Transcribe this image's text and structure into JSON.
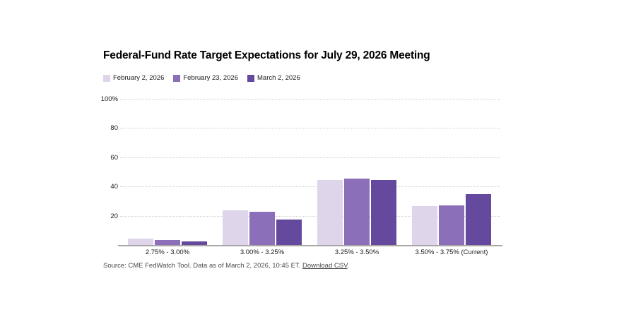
{
  "chart": {
    "title": "Federal-Fund Rate Target Expectations for July 29, 2026 Meeting"
  },
  "chart_data": {
    "type": "bar",
    "title": "Federal-Fund Rate Target Expectations for July 29, 2026 Meeting",
    "categories": [
      "2.75% - 3.00%",
      "3.00% - 3.25%",
      "3.25% - 3.50%",
      "3.50% - 3.75% (Current)"
    ],
    "series": [
      {
        "name": "February 2, 2026",
        "color": "#ded5ea",
        "values": [
          4.4,
          23.5,
          44.5,
          26.4
        ]
      },
      {
        "name": "February 23, 2026",
        "color": "#8c6fb9",
        "values": [
          3.4,
          22.8,
          45.5,
          27.2
        ]
      },
      {
        "name": "March 2, 2026",
        "color": "#64499e",
        "values": [
          2.5,
          17.3,
          44.5,
          35.0
        ]
      }
    ],
    "xlabel": "",
    "ylabel": "",
    "ylim": [
      0,
      100
    ],
    "yticks": [
      {
        "value": 100,
        "label": "100%"
      },
      {
        "value": 80,
        "label": "80"
      },
      {
        "value": 60,
        "label": "60"
      },
      {
        "value": 40,
        "label": "40"
      },
      {
        "value": 20,
        "label": "20"
      }
    ],
    "grid": "horizontal-dotted",
    "legend_position": "top-left",
    "unit": "%"
  },
  "source": {
    "prefix": "Source: CME FedWatch Tool. Data as of March 2, 2026, 10:45 ET. ",
    "link_label": "Download CSV",
    "suffix": "."
  },
  "colors": {
    "axis_line": "#a9a6a7",
    "gridline": "#cfccd4",
    "text": "#1a1a1a",
    "source_text": "#4a4a4a"
  }
}
